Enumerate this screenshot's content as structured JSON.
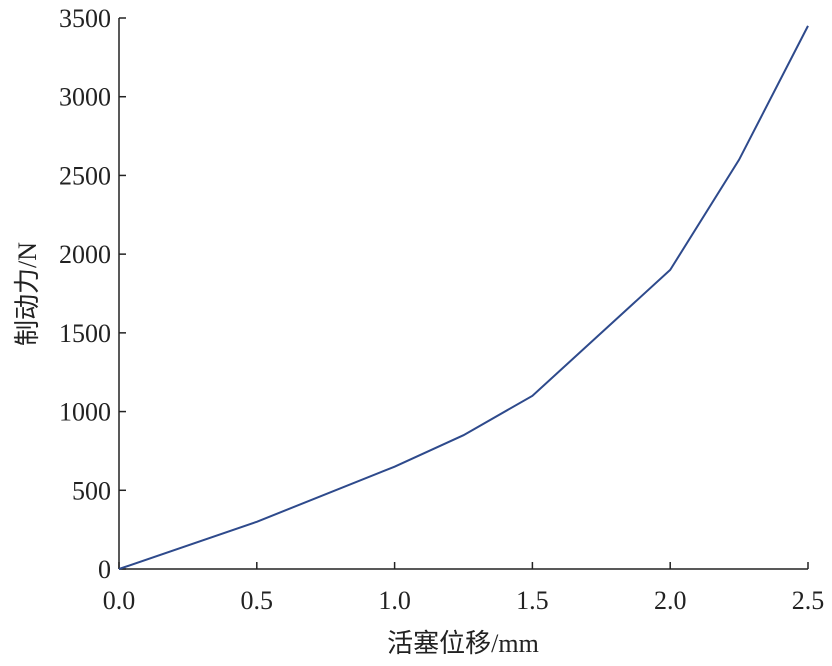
{
  "chart_data": {
    "type": "line",
    "xlabel": "活塞位移/mm",
    "ylabel": "制动力/N",
    "x": [
      0,
      0.5,
      1.0,
      1.25,
      1.5,
      2.0,
      2.25,
      2.5
    ],
    "series": [
      {
        "color": "#2e4a8c",
        "values": [
          0,
          300,
          650,
          850,
          1100,
          1900,
          2600,
          3450
        ]
      }
    ],
    "xlim": [
      0,
      2.5
    ],
    "xticks": [
      {
        "value": 0,
        "label": "0.0"
      },
      0.5,
      {
        "value": 1,
        "label": "1.0"
      },
      1.5,
      {
        "value": 2,
        "label": "2.0"
      },
      2.5
    ],
    "ylim": [
      0,
      3500
    ],
    "yticks": [
      0,
      500,
      1000,
      1500,
      2000,
      2500,
      3000,
      3500
    ]
  }
}
